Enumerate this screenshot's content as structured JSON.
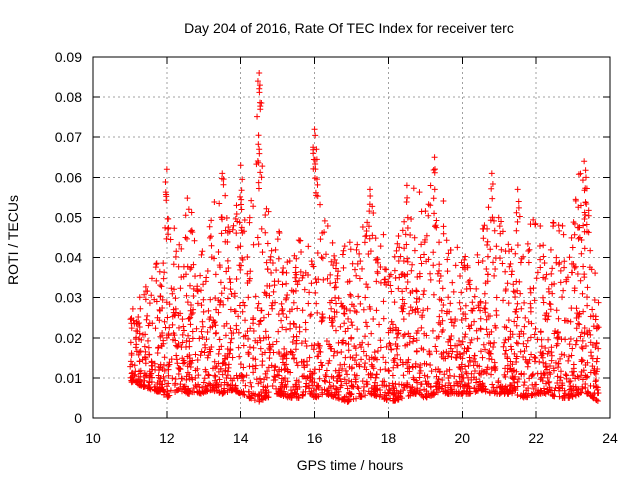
{
  "chart_data": {
    "type": "scatter",
    "title": "Day 204 of 2016, Rate Of TEC Index for receiver terc",
    "xlabel": "GPS time / hours",
    "ylabel": "ROTI / TECUs",
    "xlim": [
      10,
      24
    ],
    "ylim": [
      0,
      0.09
    ],
    "x_ticks": [
      "10",
      "12",
      "14",
      "16",
      "18",
      "20",
      "22",
      "24"
    ],
    "y_ticks": [
      "0",
      "0.01",
      "0.02",
      "0.03",
      "0.04",
      "0.05",
      "0.06",
      "0.07",
      "0.08",
      "0.09"
    ],
    "grid": true,
    "marker": "plus",
    "color": "#ff0000",
    "x_range_of_data": [
      11.0,
      23.7
    ],
    "envelope": {
      "x": [
        11.0,
        11.3,
        11.6,
        11.9,
        12.0,
        12.3,
        12.6,
        12.9,
        13.2,
        13.5,
        13.8,
        14.0,
        14.2,
        14.5,
        14.7,
        15.0,
        15.3,
        15.6,
        15.9,
        16.0,
        16.3,
        16.6,
        16.9,
        17.2,
        17.5,
        17.8,
        18.1,
        18.4,
        18.7,
        19.0,
        19.3,
        19.6,
        19.9,
        20.2,
        20.5,
        20.8,
        21.1,
        21.4,
        21.7,
        22.0,
        22.3,
        22.6,
        22.9,
        23.2,
        23.4,
        23.7
      ],
      "high": [
        0.028,
        0.032,
        0.035,
        0.045,
        0.062,
        0.042,
        0.058,
        0.04,
        0.052,
        0.06,
        0.048,
        0.062,
        0.05,
        0.086,
        0.055,
        0.05,
        0.04,
        0.045,
        0.047,
        0.072,
        0.05,
        0.04,
        0.045,
        0.043,
        0.057,
        0.052,
        0.04,
        0.05,
        0.058,
        0.055,
        0.065,
        0.048,
        0.042,
        0.04,
        0.046,
        0.061,
        0.05,
        0.045,
        0.057,
        0.05,
        0.048,
        0.05,
        0.045,
        0.064,
        0.055,
        0.03
      ],
      "low": [
        0.009,
        0.008,
        0.007,
        0.006,
        0.005,
        0.007,
        0.006,
        0.006,
        0.007,
        0.006,
        0.007,
        0.006,
        0.005,
        0.004,
        0.005,
        0.006,
        0.005,
        0.005,
        0.006,
        0.005,
        0.006,
        0.005,
        0.004,
        0.005,
        0.006,
        0.005,
        0.004,
        0.005,
        0.006,
        0.005,
        0.006,
        0.006,
        0.006,
        0.006,
        0.007,
        0.006,
        0.006,
        0.006,
        0.005,
        0.006,
        0.006,
        0.005,
        0.005,
        0.006,
        0.006,
        0.004
      ]
    },
    "spikes": [
      {
        "x": 12.0,
        "y": 0.062
      },
      {
        "x": 13.5,
        "y": 0.061
      },
      {
        "x": 14.0,
        "y": 0.063
      },
      {
        "x": 14.5,
        "y": 0.086
      },
      {
        "x": 14.52,
        "y": 0.083
      },
      {
        "x": 14.5,
        "y": 0.067
      },
      {
        "x": 16.0,
        "y": 0.072
      },
      {
        "x": 16.05,
        "y": 0.067
      },
      {
        "x": 17.5,
        "y": 0.057
      },
      {
        "x": 18.5,
        "y": 0.058
      },
      {
        "x": 19.25,
        "y": 0.065
      },
      {
        "x": 20.8,
        "y": 0.061
      },
      {
        "x": 21.5,
        "y": 0.057
      },
      {
        "x": 23.3,
        "y": 0.064
      },
      {
        "x": 23.35,
        "y": 0.06
      }
    ]
  }
}
